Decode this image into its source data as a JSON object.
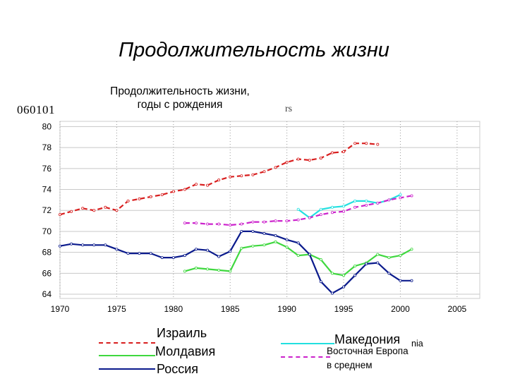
{
  "slide_title": "Продолжительность жизни",
  "chart_title_line1": "Продолжительность жизни,",
  "chart_title_line2": "годы с рождения",
  "code_label": "060101",
  "fragment_text": "rs",
  "colors": {
    "israel": "#d81e1e",
    "moldova": "#3fd83f",
    "russia": "#0a1a8c",
    "macedonia": "#22e0e0",
    "eastern_europe": "#cc22cc",
    "grid": "#999999"
  },
  "legend": {
    "israel": "Израиль",
    "moldova": "Молдавия",
    "russia": "Россия",
    "macedonia": "Македония",
    "macedonia_suffix": "nia",
    "eastern_europe_line1": "Восточная Европа",
    "eastern_europe_line2": "в среднем"
  },
  "chart_data": {
    "type": "line",
    "title": "Продолжительность жизни, годы с рождения",
    "xlim": [
      1970,
      2007
    ],
    "ylim": [
      63.6,
      80.5
    ],
    "x_ticks": [
      1970,
      1975,
      1980,
      1985,
      1990,
      1995,
      2000,
      2005
    ],
    "y_ticks": [
      64,
      66,
      68,
      70,
      72,
      74,
      76,
      78,
      80
    ],
    "grid": true,
    "legend_position": "bottom",
    "series": [
      {
        "name": "Израиль",
        "color_key": "israel",
        "dash": true,
        "x": [
          1970,
          1971,
          1972,
          1973,
          1974,
          1975,
          1976,
          1977,
          1978,
          1979,
          1980,
          1981,
          1982,
          1983,
          1984,
          1985,
          1986,
          1987,
          1988,
          1989,
          1990,
          1991,
          1992,
          1993,
          1994,
          1995,
          1996,
          1997,
          1998
        ],
        "y": [
          71.6,
          71.9,
          72.2,
          72.0,
          72.3,
          72.0,
          72.9,
          73.1,
          73.3,
          73.5,
          73.8,
          74.0,
          74.5,
          74.4,
          74.9,
          75.2,
          75.3,
          75.4,
          75.7,
          76.1,
          76.6,
          76.9,
          76.8,
          77.0,
          77.5,
          77.6,
          78.4,
          78.4,
          78.3
        ]
      },
      {
        "name": "Македония",
        "color_key": "macedonia",
        "dash": false,
        "x": [
          1991,
          1992,
          1993,
          1994,
          1995,
          1996,
          1997,
          1998,
          1999,
          2000
        ],
        "y": [
          72.1,
          71.3,
          72.1,
          72.3,
          72.4,
          72.9,
          72.9,
          72.7,
          73.0,
          73.5
        ]
      },
      {
        "name": "Восточная Европа в среднем",
        "color_key": "eastern_europe",
        "dash": true,
        "x": [
          1981,
          1982,
          1983,
          1984,
          1985,
          1986,
          1987,
          1988,
          1989,
          1990,
          1991,
          1992,
          1993,
          1994,
          1995,
          1996,
          1997,
          1998,
          1999,
          2000,
          2001
        ],
        "y": [
          70.8,
          70.8,
          70.7,
          70.7,
          70.6,
          70.7,
          70.9,
          70.9,
          71.0,
          71.0,
          71.1,
          71.3,
          71.6,
          71.8,
          71.9,
          72.3,
          72.5,
          72.7,
          73.0,
          73.2,
          73.4
        ]
      },
      {
        "name": "Молдавия",
        "color_key": "moldova",
        "dash": false,
        "x": [
          1981,
          1982,
          1983,
          1984,
          1985,
          1986,
          1987,
          1988,
          1989,
          1990,
          1991,
          1992,
          1993,
          1994,
          1995,
          1996,
          1997,
          1998,
          1999,
          2000,
          2001
        ],
        "y": [
          66.2,
          66.5,
          66.4,
          66.3,
          66.2,
          68.4,
          68.6,
          68.7,
          69.0,
          68.5,
          67.7,
          67.8,
          67.3,
          66.0,
          65.8,
          66.7,
          67.0,
          67.8,
          67.5,
          67.7,
          68.3
        ]
      },
      {
        "name": "Россия",
        "color_key": "russia",
        "dash": false,
        "x": [
          1970,
          1971,
          1972,
          1973,
          1974,
          1975,
          1976,
          1977,
          1978,
          1979,
          1980,
          1981,
          1982,
          1983,
          1984,
          1985,
          1986,
          1987,
          1988,
          1989,
          1990,
          1991,
          1992,
          1993,
          1994,
          1995,
          1996,
          1997,
          1998,
          1999,
          2000,
          2001
        ],
        "y": [
          68.6,
          68.8,
          68.7,
          68.7,
          68.7,
          68.3,
          67.9,
          67.9,
          67.9,
          67.5,
          67.5,
          67.7,
          68.3,
          68.2,
          67.6,
          68.1,
          70.0,
          70.0,
          69.8,
          69.6,
          69.2,
          68.9,
          67.8,
          65.2,
          64.1,
          64.7,
          65.8,
          66.9,
          67.0,
          66.0,
          65.3,
          65.3
        ]
      }
    ]
  }
}
